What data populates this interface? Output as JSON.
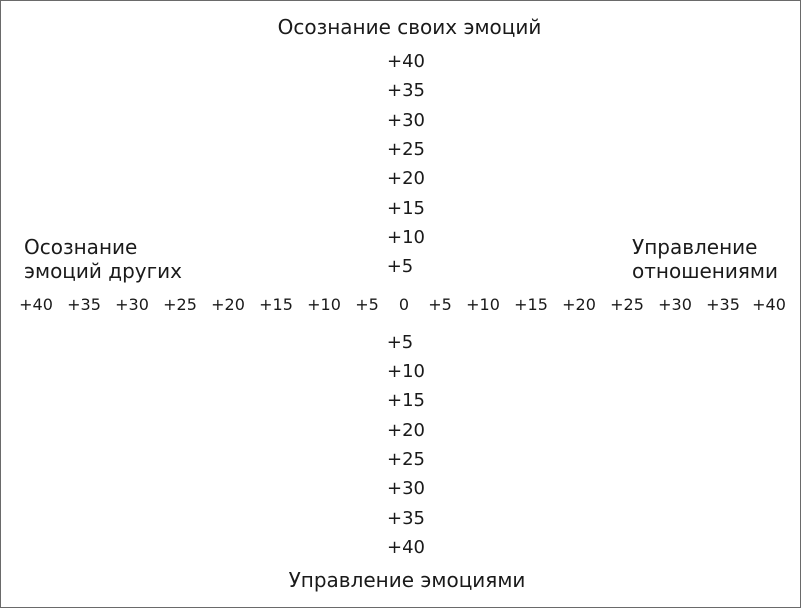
{
  "axes": {
    "top": {
      "lines": [
        "Осознание своих эмоций"
      ]
    },
    "bottom": {
      "lines": [
        "Управление эмоциями"
      ]
    },
    "left": {
      "lines": [
        "Осознание",
        "эмоций других"
      ]
    },
    "right": {
      "lines": [
        "Управление",
        "отношениями"
      ]
    }
  },
  "scale": {
    "up": [
      "+40",
      "+35",
      "+30",
      "+25",
      "+20",
      "+15",
      "+10",
      "+5"
    ],
    "down": [
      "+5",
      "+10",
      "+15",
      "+20",
      "+25",
      "+30",
      "+35",
      "+40"
    ],
    "left": [
      "+40",
      "+35",
      "+30",
      "+25",
      "+20",
      "+15",
      "+10",
      "+5"
    ],
    "center": "0",
    "right": [
      "+5",
      "+10",
      "+15",
      "+20",
      "+25",
      "+30",
      "+35",
      "+40"
    ]
  }
}
